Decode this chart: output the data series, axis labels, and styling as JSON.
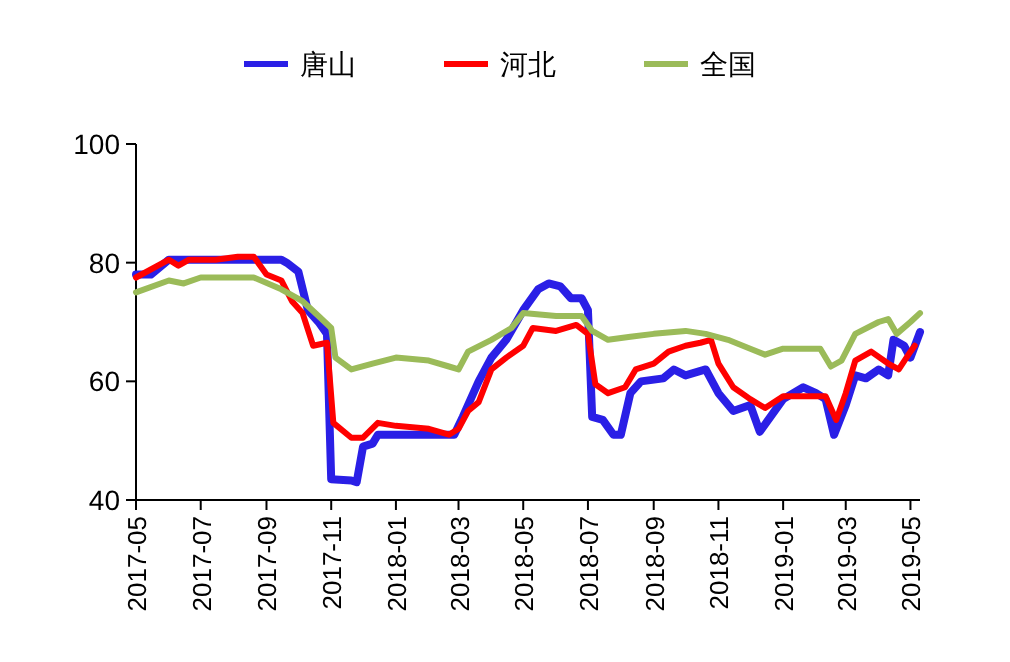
{
  "chart_data": {
    "type": "line",
    "legend": "top",
    "marker": "none",
    "line_style": "solid",
    "grid": false,
    "xlim": [
      "2017-05-01",
      "2019-05-10"
    ],
    "ylim": [
      40,
      100
    ],
    "yticks": [
      40,
      60,
      80,
      100
    ],
    "xticks": [
      "2017-05",
      "2017-07",
      "2017-09",
      "2017-11",
      "2018-01",
      "2018-03",
      "2018-05",
      "2018-07",
      "2018-09",
      "2018-11",
      "2019-01",
      "2019-03",
      "2019-05"
    ],
    "series": [
      {
        "name": "唐山",
        "color": "#2a1fe6",
        "x": [
          "2017-05-01",
          "2017-05-15",
          "2017-06-01",
          "2017-07-01",
          "2017-08-01",
          "2017-09-15",
          "2017-09-20",
          "2017-10-01",
          "2017-10-10",
          "2017-10-20",
          "2017-10-28",
          "2017-11-01",
          "2017-11-20",
          "2017-11-25",
          "2017-12-01",
          "2017-12-10",
          "2017-12-15",
          "2018-02-25",
          "2018-03-05",
          "2018-03-20",
          "2018-04-01",
          "2018-04-15",
          "2018-05-01",
          "2018-05-15",
          "2018-05-25",
          "2018-06-05",
          "2018-06-15",
          "2018-06-25",
          "2018-07-01",
          "2018-07-05",
          "2018-07-15",
          "2018-07-25",
          "2018-08-01",
          "2018-08-10",
          "2018-08-20",
          "2018-09-10",
          "2018-09-20",
          "2018-10-01",
          "2018-10-20",
          "2018-11-01",
          "2018-11-15",
          "2018-12-01",
          "2018-12-10",
          "2019-01-01",
          "2019-01-20",
          "2019-02-01",
          "2019-02-10",
          "2019-02-18",
          "2019-03-01",
          "2019-03-10",
          "2019-03-20",
          "2019-04-01",
          "2019-04-10",
          "2019-04-15",
          "2019-04-25",
          "2019-05-01",
          "2019-05-10"
        ],
        "values": [
          78,
          78,
          80.5,
          80.5,
          80.5,
          80.5,
          80,
          78.5,
          72,
          70,
          68,
          43.5,
          43.3,
          43,
          49,
          49.5,
          51,
          51,
          54,
          60,
          64,
          67,
          72,
          75.5,
          76.5,
          76,
          74,
          74,
          72,
          54,
          53.5,
          51,
          51,
          58,
          60,
          60.5,
          62,
          61,
          62,
          58,
          55,
          56,
          51.5,
          57,
          59,
          58,
          57,
          51,
          56,
          61,
          60.5,
          62,
          61,
          67,
          66,
          64,
          68.3
        ]
      },
      {
        "name": "河北",
        "color": "#ff0000",
        "x": [
          "2017-05-01",
          "2017-06-01",
          "2017-06-10",
          "2017-06-20",
          "2017-07-15",
          "2017-08-05",
          "2017-08-20",
          "2017-09-01",
          "2017-09-15",
          "2017-09-25",
          "2017-10-05",
          "2017-10-15",
          "2017-10-28",
          "2017-11-03",
          "2017-11-20",
          "2017-12-01",
          "2017-12-15",
          "2018-01-01",
          "2018-02-01",
          "2018-02-20",
          "2018-03-01",
          "2018-03-10",
          "2018-03-20",
          "2018-04-01",
          "2018-04-15",
          "2018-05-01",
          "2018-05-10",
          "2018-06-01",
          "2018-06-20",
          "2018-07-01",
          "2018-07-08",
          "2018-07-20",
          "2018-08-05",
          "2018-08-15",
          "2018-09-01",
          "2018-09-15",
          "2018-10-01",
          "2018-10-15",
          "2018-10-25",
          "2018-11-01",
          "2018-11-15",
          "2018-12-01",
          "2018-12-15",
          "2019-01-01",
          "2019-02-10",
          "2019-02-20",
          "2019-03-01",
          "2019-03-10",
          "2019-03-25",
          "2019-04-10",
          "2019-04-20",
          "2019-05-01",
          "2019-05-05"
        ],
        "values": [
          77.5,
          80.5,
          79.5,
          80.5,
          80.5,
          81,
          81,
          78,
          77,
          73.5,
          71.5,
          66,
          66.5,
          53,
          50.5,
          50.5,
          53,
          52.5,
          52,
          51,
          52,
          55,
          56.5,
          62,
          64,
          66,
          69,
          68.5,
          69.5,
          68,
          59.5,
          58,
          59,
          62,
          63,
          65,
          66,
          66.5,
          67,
          63,
          59,
          57,
          55.5,
          57.5,
          57.5,
          53.5,
          58,
          63.5,
          65,
          63,
          62,
          65,
          66
        ]
      },
      {
        "name": "全国",
        "color": "#9bbb59",
        "x": [
          "2017-05-01",
          "2017-06-01",
          "2017-06-15",
          "2017-07-01",
          "2017-08-01",
          "2017-08-20",
          "2017-09-15",
          "2017-10-05",
          "2017-10-20",
          "2017-11-01",
          "2017-11-05",
          "2017-11-20",
          "2017-12-10",
          "2018-01-01",
          "2018-02-01",
          "2018-02-20",
          "2018-03-01",
          "2018-03-10",
          "2018-04-01",
          "2018-04-20",
          "2018-05-01",
          "2018-06-01",
          "2018-06-25",
          "2018-07-05",
          "2018-07-20",
          "2018-08-10",
          "2018-09-01",
          "2018-10-01",
          "2018-10-20",
          "2018-11-10",
          "2018-12-01",
          "2018-12-15",
          "2019-01-01",
          "2019-02-05",
          "2019-02-15",
          "2019-02-25",
          "2019-03-10",
          "2019-04-01",
          "2019-04-10",
          "2019-04-18",
          "2019-05-01",
          "2019-05-10"
        ],
        "values": [
          75,
          77,
          76.5,
          77.5,
          77.5,
          77.5,
          75.5,
          73.5,
          71,
          69,
          64,
          62,
          63,
          64,
          63.5,
          62.5,
          62,
          65,
          67,
          69,
          71.5,
          71,
          71,
          68.5,
          67,
          67.5,
          68,
          68.5,
          68,
          67,
          65.5,
          64.5,
          65.5,
          65.5,
          62.5,
          63.5,
          68,
          70,
          70.5,
          68,
          70,
          71.5
        ]
      }
    ]
  }
}
